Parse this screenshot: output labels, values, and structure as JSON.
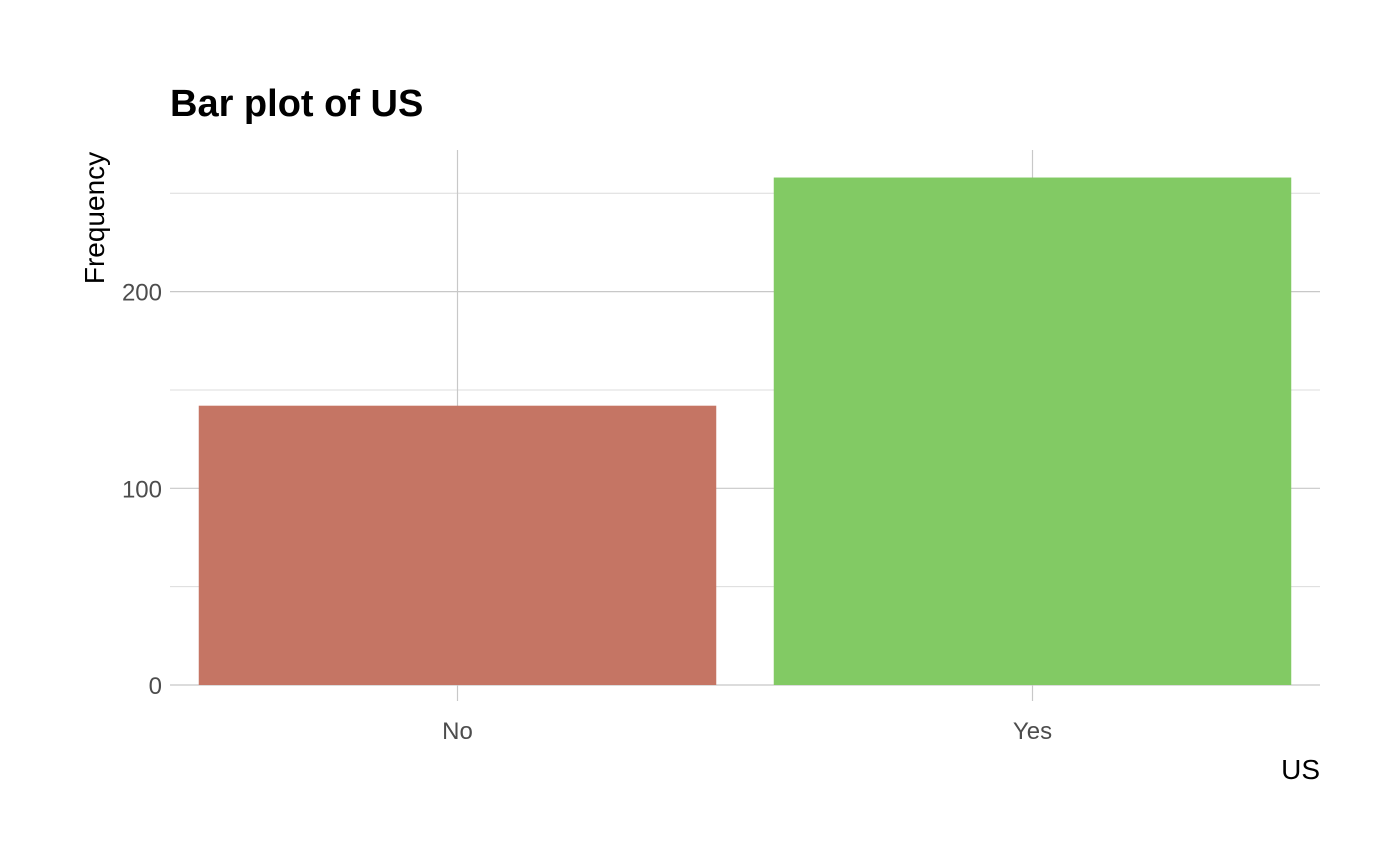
{
  "chart_data": {
    "type": "bar",
    "title": "Bar plot of US",
    "xlabel": "US",
    "ylabel": "Frequency",
    "categories": [
      "No",
      "Yes"
    ],
    "values": [
      142,
      258
    ],
    "colors": [
      "#c57564",
      "#82ca64"
    ],
    "ylim": [
      0,
      272
    ],
    "y_ticks": [
      0,
      100,
      200
    ],
    "y_tick_labels": [
      "0",
      "100",
      "200"
    ],
    "grid": true,
    "legend": "none"
  }
}
